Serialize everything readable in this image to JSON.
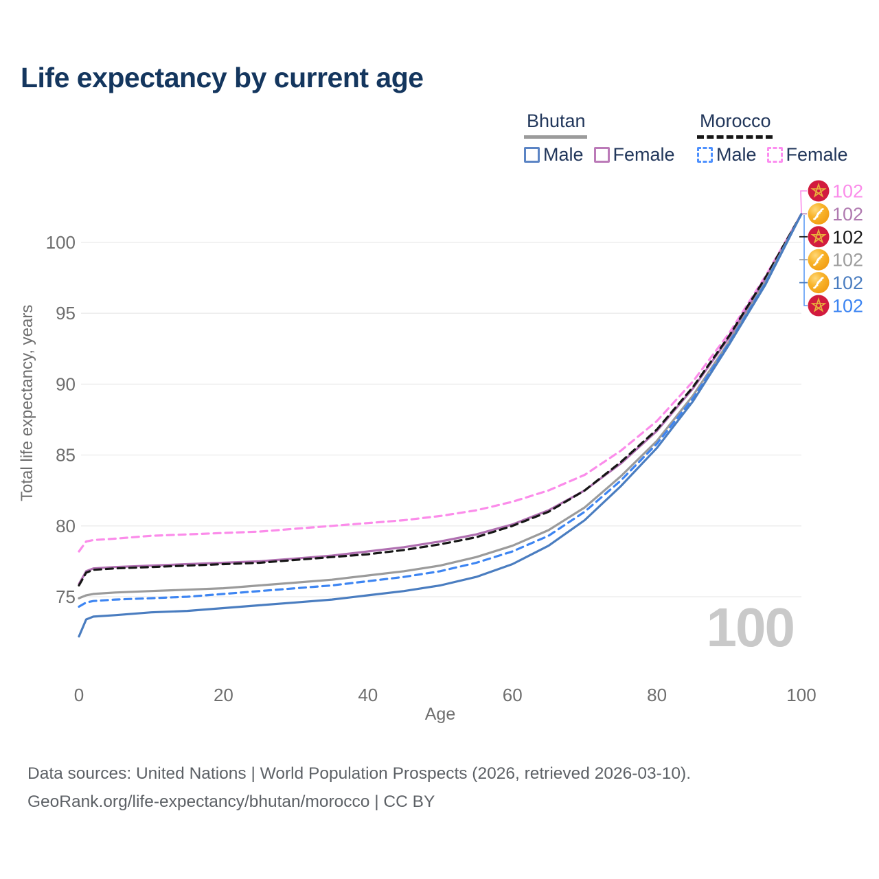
{
  "title": "Life expectancy by current age",
  "legend": {
    "bhutan": {
      "name": "Bhutan",
      "male": "Male",
      "female": "Female"
    },
    "morocco": {
      "name": "Morocco",
      "male": "Male",
      "female": "Female"
    }
  },
  "axes": {
    "x_label": "Age",
    "y_label": "Total life expectancy, years"
  },
  "watermark": "100",
  "footer": {
    "line1": "Data sources: United Nations | World Population Prospects (2026, retrieved 2026-03-10).",
    "line2": "GeoRank.org/life-expectancy/bhutan/morocco | CC BY"
  },
  "colors": {
    "title": "#14365e",
    "grid": "#ebebeb",
    "tick_text": "#6e6e6e",
    "bhutan_male": "#4a7dc0",
    "bhutan_female": "#b06fb1",
    "bhutan_all": "#9b9b9b",
    "morocco_male": "#3d85f2",
    "morocco_female": "#fb8cea",
    "morocco_all": "#161616",
    "badge_morocco": "#d21b3e",
    "badge_morocco_star": "#e8b13c",
    "badge_bhutan": "#f6a51d",
    "leader_blue": "#5b9bf5"
  },
  "endpoint_labels": [
    {
      "flag": "morocco",
      "value": "102",
      "color": "#fb8cea"
    },
    {
      "flag": "bhutan",
      "value": "102",
      "color": "#b07ab0"
    },
    {
      "flag": "morocco",
      "value": "102",
      "color": "#1a1a1a"
    },
    {
      "flag": "bhutan",
      "value": "102",
      "color": "#9e9e9e"
    },
    {
      "flag": "bhutan",
      "value": "102",
      "color": "#4a7dc0"
    },
    {
      "flag": "morocco",
      "value": "102",
      "color": "#3d85f2"
    }
  ],
  "chart_data": {
    "type": "line",
    "title": "Life expectancy by current age",
    "xlabel": "Age",
    "ylabel": "Total life expectancy, years",
    "xlim": [
      0,
      100
    ],
    "ylim": [
      71.5,
      103
    ],
    "x_ticks": [
      0,
      20,
      40,
      60,
      80,
      100
    ],
    "y_ticks": [
      75,
      80,
      85,
      90,
      95,
      100
    ],
    "grid": "horizontal",
    "legend_position": "top-right",
    "x": [
      0,
      1,
      2,
      5,
      10,
      15,
      20,
      25,
      30,
      35,
      40,
      45,
      50,
      55,
      60,
      65,
      70,
      75,
      80,
      85,
      90,
      95,
      100
    ],
    "series": [
      {
        "name": "Morocco Female",
        "color": "#fb8cea",
        "dashed": true,
        "values": [
          78.2,
          78.9,
          79.0,
          79.1,
          79.3,
          79.4,
          79.5,
          79.6,
          79.8,
          80.0,
          80.2,
          80.4,
          80.7,
          81.1,
          81.7,
          82.5,
          83.6,
          85.3,
          87.4,
          90.2,
          93.6,
          97.6,
          102.0
        ]
      },
      {
        "name": "Bhutan Female",
        "color": "#b06fb1",
        "dashed": false,
        "values": [
          75.9,
          76.8,
          77.0,
          77.1,
          77.2,
          77.3,
          77.4,
          77.5,
          77.7,
          77.9,
          78.2,
          78.5,
          78.9,
          79.4,
          80.1,
          81.1,
          82.5,
          84.4,
          86.7,
          89.7,
          93.3,
          97.4,
          102.0
        ]
      },
      {
        "name": "Morocco",
        "color": "#161616",
        "dashed": true,
        "values": [
          75.8,
          76.7,
          76.9,
          77.0,
          77.1,
          77.2,
          77.3,
          77.4,
          77.6,
          77.8,
          78.0,
          78.3,
          78.7,
          79.2,
          80.0,
          81.0,
          82.5,
          84.5,
          86.8,
          89.8,
          93.4,
          97.5,
          102.0
        ]
      },
      {
        "name": "Bhutan",
        "color": "#9b9b9b",
        "dashed": false,
        "values": [
          74.9,
          75.1,
          75.2,
          75.3,
          75.4,
          75.5,
          75.6,
          75.8,
          76.0,
          76.2,
          76.5,
          76.8,
          77.2,
          77.8,
          78.6,
          79.7,
          81.3,
          83.5,
          86.0,
          89.2,
          93.0,
          97.2,
          102.0
        ]
      },
      {
        "name": "Morocco Male",
        "color": "#3d85f2",
        "dashed": true,
        "values": [
          74.3,
          74.6,
          74.7,
          74.8,
          74.9,
          75.0,
          75.2,
          75.4,
          75.6,
          75.8,
          76.1,
          76.4,
          76.8,
          77.4,
          78.2,
          79.3,
          81.0,
          83.2,
          85.8,
          89.0,
          92.9,
          97.1,
          102.0
        ]
      },
      {
        "name": "Bhutan Male",
        "color": "#4a7dc0",
        "dashed": false,
        "values": [
          72.2,
          73.4,
          73.6,
          73.7,
          73.9,
          74.0,
          74.2,
          74.4,
          74.6,
          74.8,
          75.1,
          75.4,
          75.8,
          76.4,
          77.3,
          78.6,
          80.4,
          82.8,
          85.5,
          88.8,
          92.8,
          97.0,
          102.0
        ]
      }
    ]
  }
}
